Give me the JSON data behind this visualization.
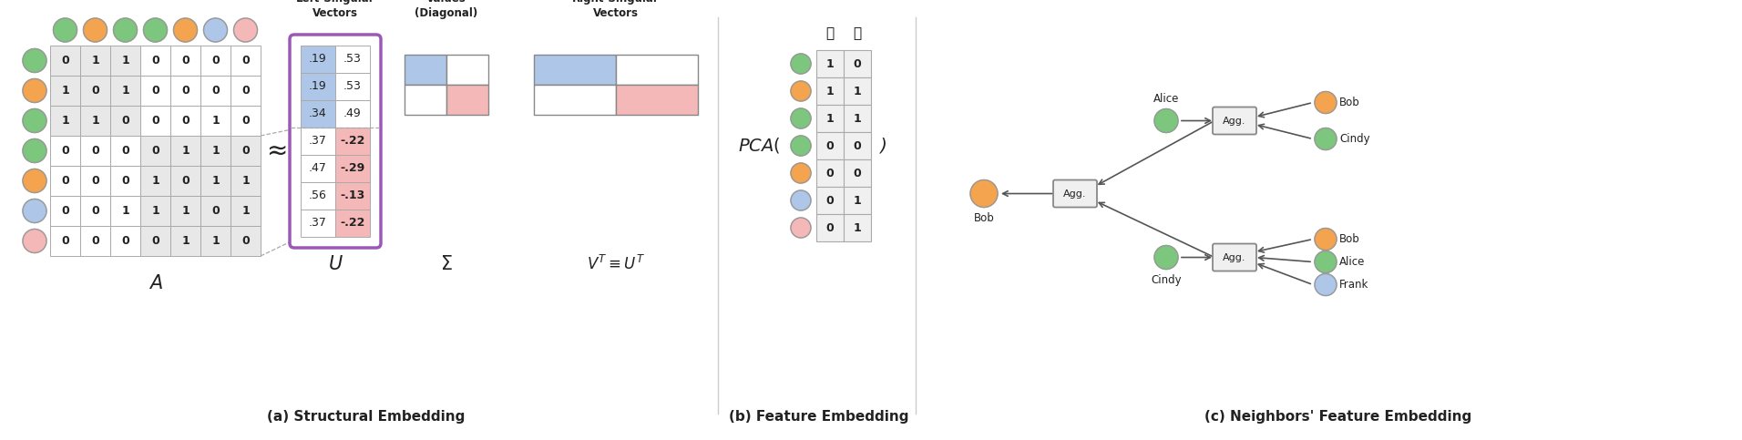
{
  "fig_width": 19.12,
  "fig_height": 4.83,
  "bg_color": "#ffffff",
  "adj_matrix": [
    [
      0,
      1,
      1,
      0,
      0,
      0,
      0
    ],
    [
      1,
      0,
      1,
      0,
      0,
      0,
      0
    ],
    [
      1,
      1,
      0,
      0,
      0,
      1,
      0
    ],
    [
      0,
      0,
      0,
      0,
      1,
      1,
      0
    ],
    [
      0,
      0,
      0,
      1,
      0,
      1,
      1
    ],
    [
      0,
      0,
      1,
      1,
      1,
      0,
      1
    ],
    [
      0,
      0,
      0,
      0,
      1,
      1,
      0
    ]
  ],
  "U_matrix": [
    [
      ".19",
      ".53"
    ],
    [
      ".19",
      ".53"
    ],
    [
      ".34",
      ".49"
    ],
    [
      ".37",
      "-.22"
    ],
    [
      ".47",
      "-.29"
    ],
    [
      ".56",
      "-.13"
    ],
    [
      ".37",
      "-.22"
    ]
  ],
  "feature_matrix": [
    [
      1,
      0
    ],
    [
      1,
      1
    ],
    [
      1,
      1
    ],
    [
      0,
      0
    ],
    [
      0,
      0
    ],
    [
      0,
      1
    ],
    [
      0,
      1
    ]
  ],
  "avatar_colors": [
    "#7dc67e",
    "#f4a44f",
    "#7dc67e",
    "#7dc67e",
    "#f4a44f",
    "#aec6e8",
    "#f4b8b8"
  ],
  "BLUE": "#aec6e8",
  "RED": "#f4b8b8",
  "WHITE": "#ffffff",
  "DARK": "#222222",
  "PURPLE": "#9b59b6",
  "LGRAY": "#e0e0e0",
  "section_titles": [
    "(a) Structural Embedding",
    "(b) Feature Embedding",
    "(c) Neighbors' Feature Embedding"
  ],
  "node_labels_c": {
    "alice_top": "Alice",
    "bob_top": "Bob",
    "cindy_top": "Cindy",
    "cindy_bot": "Cindy",
    "bob_bot": "Bob",
    "alice_bot": "Alice",
    "frank_bot": "Frank",
    "bob_main": "Bob"
  },
  "node_colors_c": {
    "bob_main": "#f4a44f",
    "alice_top": "#7dc67e",
    "bob_top": "#f4a44f",
    "cindy_top": "#7dc67e",
    "cindy_bot": "#7dc67e",
    "bob_bot": "#f4a44f",
    "alice_bot": "#7dc67e",
    "frank_bot": "#aec6e8"
  }
}
